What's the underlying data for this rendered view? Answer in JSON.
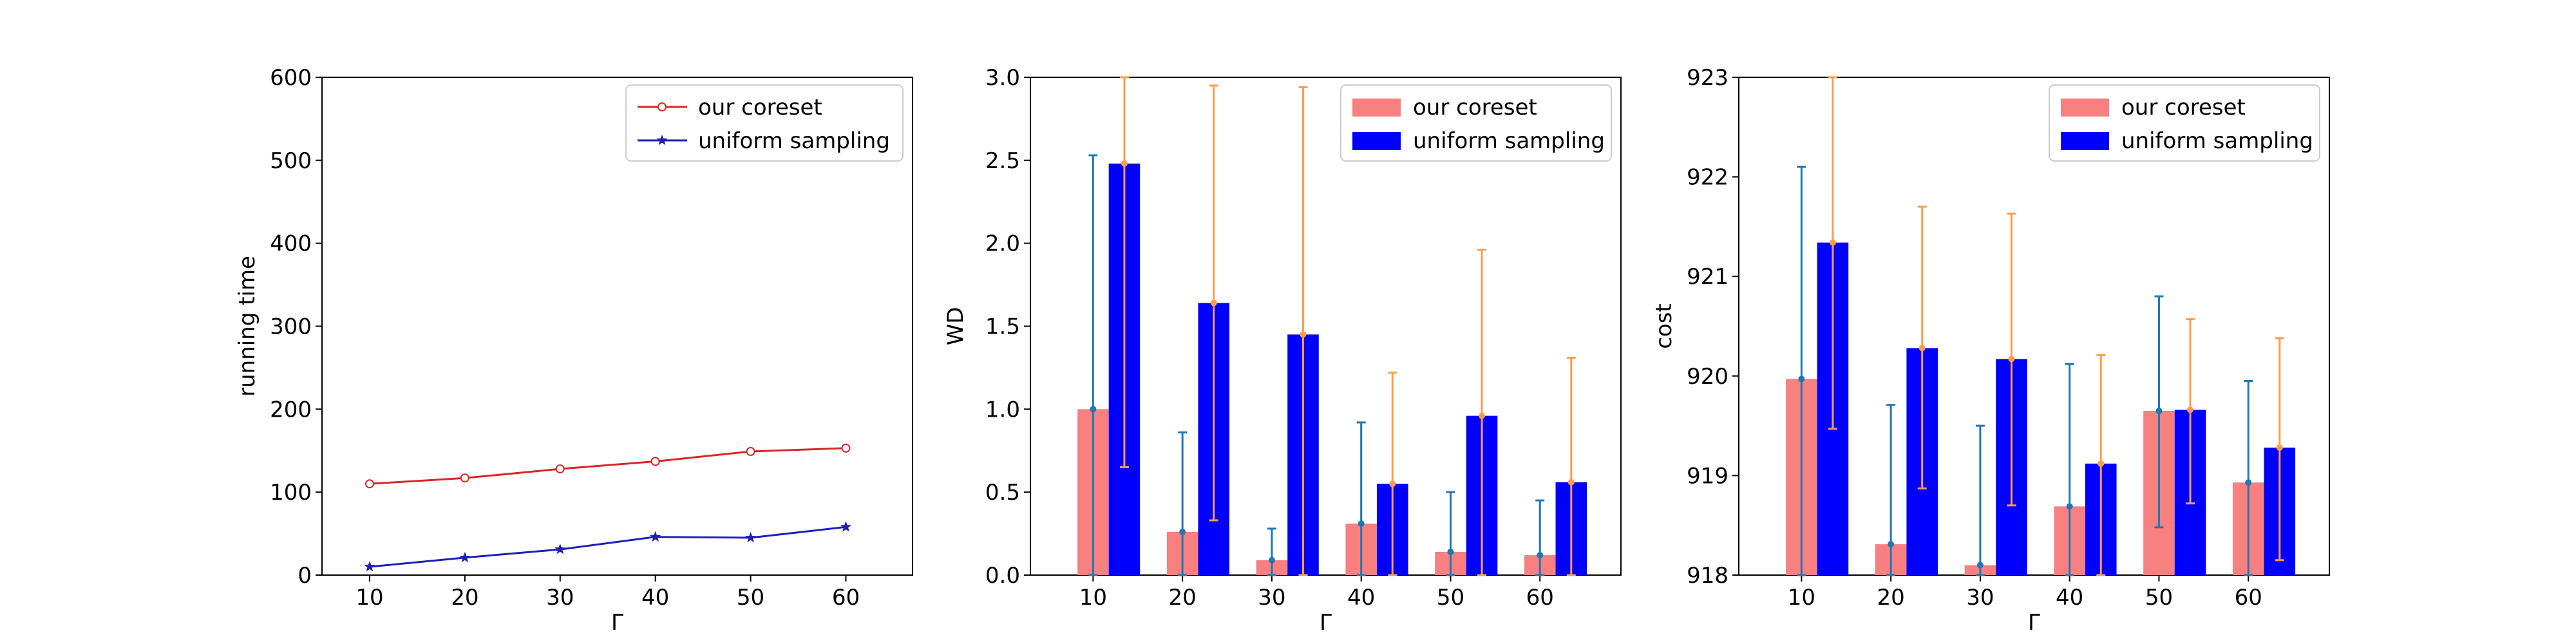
{
  "chart_data": [
    {
      "type": "line",
      "xlabel": "Γ",
      "ylabel": "running time",
      "xlim": [
        5,
        67
      ],
      "ylim": [
        0,
        600
      ],
      "xticks": [
        10,
        20,
        30,
        40,
        50,
        60
      ],
      "yticks": [
        0,
        100,
        200,
        300,
        400,
        500,
        600
      ],
      "grid": false,
      "legend_position": "top-right",
      "x": [
        10,
        20,
        30,
        40,
        50,
        60
      ],
      "series": [
        {
          "name": "our coreset",
          "color": "#d62728",
          "marker": "circle",
          "values": [
            110,
            117,
            128,
            137,
            149,
            153
          ]
        },
        {
          "name": "uniform sampling",
          "color": "#1f1fb4",
          "marker": "star",
          "values": [
            10,
            21,
            31,
            46,
            45,
            58
          ]
        }
      ]
    },
    {
      "type": "bar",
      "xlabel": "Γ",
      "ylabel": "WD",
      "ylim": [
        0,
        3.0
      ],
      "yticks": [
        "0.0",
        "0.5",
        "1.0",
        "1.5",
        "2.0",
        "2.5",
        "3.0"
      ],
      "grid": false,
      "legend_position": "top-right",
      "categories": [
        "10",
        "20",
        "30",
        "40",
        "50",
        "60"
      ],
      "series": [
        {
          "name": "our coreset",
          "color": "#f88080",
          "error_color": "#1f77b4",
          "values": [
            1.0,
            0.26,
            0.09,
            0.31,
            0.14,
            0.12
          ],
          "err_low": [
            0.0,
            0.0,
            0.0,
            0.0,
            0.0,
            0.0
          ],
          "err_high": [
            2.53,
            0.86,
            0.28,
            0.92,
            0.5,
            0.45
          ]
        },
        {
          "name": "uniform sampling",
          "color": "#0000ff",
          "error_color": "#ff9c4a",
          "values": [
            2.48,
            1.64,
            1.45,
            0.55,
            0.96,
            0.56
          ],
          "err_low": [
            0.65,
            0.33,
            0.0,
            0.0,
            0.0,
            0.0
          ],
          "err_high": [
            3.0,
            2.95,
            2.94,
            1.22,
            1.96,
            1.31
          ]
        }
      ]
    },
    {
      "type": "bar",
      "xlabel": "Γ",
      "ylabel": "cost",
      "ylim": [
        918,
        923
      ],
      "yticks": [
        "918",
        "919",
        "920",
        "921",
        "922",
        "923"
      ],
      "grid": false,
      "legend_position": "top-right",
      "categories": [
        "10",
        "20",
        "30",
        "40",
        "50",
        "60"
      ],
      "series": [
        {
          "name": "our coreset",
          "color": "#f88080",
          "error_color": "#1f77b4",
          "values": [
            919.97,
            918.31,
            918.1,
            918.69,
            919.65,
            918.93
          ],
          "err_low": [
            918.0,
            918.0,
            918.0,
            918.0,
            918.48,
            918.0
          ],
          "err_high": [
            922.1,
            919.71,
            919.5,
            920.12,
            920.8,
            919.95
          ]
        },
        {
          "name": "uniform sampling",
          "color": "#0000ff",
          "error_color": "#ff9c4a",
          "values": [
            921.34,
            920.28,
            920.17,
            919.12,
            919.66,
            919.28
          ],
          "err_low": [
            919.47,
            918.87,
            918.7,
            918.0,
            918.72,
            918.15
          ],
          "err_high": [
            923.0,
            921.7,
            921.63,
            920.21,
            920.57,
            920.38
          ]
        }
      ]
    }
  ]
}
